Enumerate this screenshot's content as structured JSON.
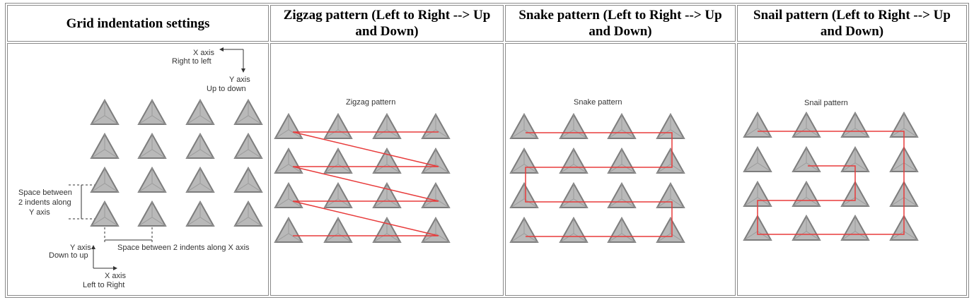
{
  "columns": [
    {
      "header": "Grid indentation settings"
    },
    {
      "header": "Zigzag pattern (Left to Right --> Up and Down)"
    },
    {
      "header": "Snake pattern (Left to Right --> Up and Down)"
    },
    {
      "header": "Snail pattern (Left to Right --> Up and Down)"
    }
  ],
  "grid_settings": {
    "x_axis_top": "X axis",
    "x_axis_top_dir": "Right to left",
    "y_axis_top": "Y axis",
    "y_axis_top_dir": "Up to down",
    "space_y_line1": "Space between",
    "space_y_line2": "2 indents along",
    "space_y_line3": "Y axis",
    "space_x": "Space between 2 indents along X axis",
    "y_axis_bottom": "Y axis",
    "y_axis_bottom_dir": "Down to up",
    "x_axis_bottom": "X axis",
    "x_axis_bottom_dir": "Left to Right"
  },
  "zigzag": {
    "title": "Zigzag pattern"
  },
  "snake": {
    "title": "Snake pattern"
  },
  "snail": {
    "title": "Snail pattern"
  },
  "colors": {
    "path": "#e83b3b",
    "triangle_fill": "#b9b9b9",
    "triangle_edge": "#7d7d7d",
    "triangle_inner": "#9a9a9a"
  }
}
